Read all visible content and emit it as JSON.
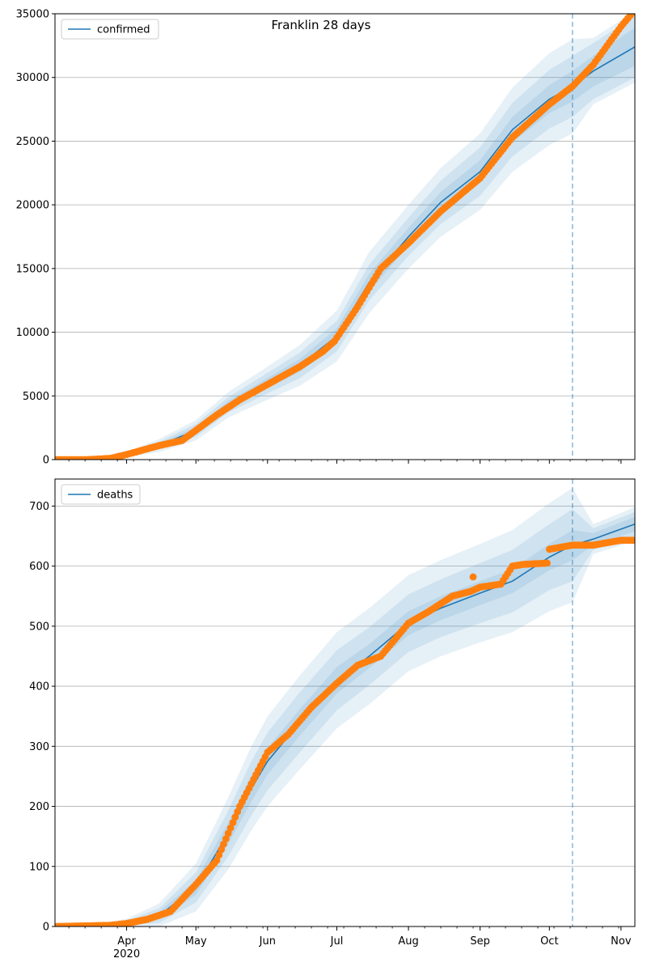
{
  "figure": {
    "title": "Franklin 28 days"
  },
  "colors": {
    "model": "#1f77b4",
    "observed": "#ff7f0e",
    "band": "#1f77b4",
    "grid": "#b0b0b0",
    "cutoff": "#1f77b4"
  },
  "x_axis": {
    "range": [
      "2020-03-01",
      "2020-11-07"
    ],
    "ticks": [
      {
        "date": "2020-04-01",
        "label": "Apr",
        "sublabel": "2020"
      },
      {
        "date": "2020-05-01",
        "label": "May",
        "sublabel": ""
      },
      {
        "date": "2020-06-01",
        "label": "Jun",
        "sublabel": ""
      },
      {
        "date": "2020-07-01",
        "label": "Jul",
        "sublabel": ""
      },
      {
        "date": "2020-08-01",
        "label": "Aug",
        "sublabel": ""
      },
      {
        "date": "2020-09-01",
        "label": "Sep",
        "sublabel": ""
      },
      {
        "date": "2020-10-01",
        "label": "Oct",
        "sublabel": ""
      },
      {
        "date": "2020-11-01",
        "label": "Nov",
        "sublabel": ""
      }
    ],
    "forecast_start": "2020-10-11"
  },
  "chart_data": [
    {
      "type": "line",
      "title": "Franklin 28 days",
      "legend": {
        "entries": [
          "confirmed"
        ],
        "placement": "top-left"
      },
      "grid": "horizontal",
      "ylim": [
        0,
        35000
      ],
      "yticks": [
        "0",
        "5000",
        "10000",
        "15000",
        "20000",
        "25000",
        "30000",
        "35000"
      ],
      "model": {
        "name": "confirmed",
        "x": [
          "2020-03-01",
          "2020-03-15",
          "2020-04-01",
          "2020-04-15",
          "2020-05-01",
          "2020-05-15",
          "2020-06-01",
          "2020-06-15",
          "2020-07-01",
          "2020-07-15",
          "2020-08-01",
          "2020-08-15",
          "2020-09-01",
          "2020-09-15",
          "2020-10-01",
          "2020-10-11",
          "2020-10-20",
          "2020-11-07"
        ],
        "y": [
          0,
          50,
          400,
          1100,
          2300,
          4300,
          6000,
          7400,
          9700,
          13900,
          17500,
          20200,
          22600,
          25900,
          28300,
          29300,
          30500,
          32400
        ],
        "band_widths": [
          [
            0,
            10,
            60,
            150,
            250,
            300,
            400,
            500,
            600,
            700,
            700,
            800,
            900,
            1000,
            1100,
            1200,
            1200,
            1500
          ],
          [
            0,
            20,
            120,
            300,
            500,
            600,
            800,
            1000,
            1200,
            1400,
            1500,
            1700,
            1900,
            2100,
            2300,
            2400,
            2200,
            2400
          ],
          [
            0,
            35,
            200,
            500,
            800,
            1000,
            1300,
            1600,
            2000,
            2400,
            2500,
            2700,
            3000,
            3300,
            3600,
            3700,
            2600,
            2800
          ]
        ]
      },
      "observed": {
        "name": "observed",
        "x": [
          "2020-03-01",
          "2020-03-15",
          "2020-03-25",
          "2020-04-01",
          "2020-04-15",
          "2020-04-25",
          "2020-05-01",
          "2020-05-10",
          "2020-05-20",
          "2020-06-01",
          "2020-06-15",
          "2020-06-25",
          "2020-06-30",
          "2020-07-10",
          "2020-07-20",
          "2020-08-01",
          "2020-08-15",
          "2020-09-01",
          "2020-09-15",
          "2020-10-01",
          "2020-10-11",
          "2020-10-20",
          "2020-11-01",
          "2020-11-07"
        ],
        "y": [
          0,
          0,
          100,
          400,
          1100,
          1500,
          2300,
          3500,
          4700,
          5900,
          7300,
          8500,
          9300,
          12000,
          15000,
          17000,
          19500,
          22100,
          25300,
          27900,
          29300,
          31000,
          34000,
          35300
        ]
      }
    },
    {
      "type": "line",
      "title": "",
      "legend": {
        "entries": [
          "deaths"
        ],
        "placement": "top-left"
      },
      "grid": "horizontal",
      "ylim": [
        0,
        745
      ],
      "yticks": [
        "0",
        "100",
        "200",
        "300",
        "400",
        "500",
        "600",
        "700"
      ],
      "model": {
        "name": "deaths",
        "x": [
          "2020-03-01",
          "2020-03-20",
          "2020-04-01",
          "2020-04-15",
          "2020-05-01",
          "2020-05-15",
          "2020-05-25",
          "2020-06-01",
          "2020-06-15",
          "2020-07-01",
          "2020-07-15",
          "2020-08-01",
          "2020-08-15",
          "2020-09-01",
          "2020-09-15",
          "2020-10-01",
          "2020-10-11",
          "2020-10-20",
          "2020-11-07"
        ],
        "y": [
          0,
          2,
          6,
          18,
          65,
          155,
          230,
          275,
          340,
          410,
          450,
          505,
          530,
          555,
          575,
          615,
          635,
          645,
          670
        ],
        "band_widths": [
          [
            0,
            1,
            2,
            6,
            12,
            18,
            22,
            22,
            22,
            22,
            20,
            20,
            20,
            20,
            20,
            22,
            25,
            10,
            12
          ],
          [
            0,
            2,
            4,
            12,
            25,
            38,
            45,
            48,
            50,
            50,
            48,
            48,
            48,
            50,
            52,
            55,
            60,
            18,
            20
          ],
          [
            0,
            3,
            7,
            20,
            40,
            60,
            70,
            75,
            78,
            80,
            80,
            80,
            80,
            82,
            85,
            90,
            95,
            25,
            28
          ]
        ]
      },
      "observed": {
        "name": "observed",
        "x": [
          "2020-03-01",
          "2020-03-25",
          "2020-04-01",
          "2020-04-10",
          "2020-04-20",
          "2020-05-01",
          "2020-05-10",
          "2020-05-20",
          "2020-06-01",
          "2020-06-10",
          "2020-06-20",
          "2020-07-01",
          "2020-07-10",
          "2020-07-20",
          "2020-08-01",
          "2020-08-10",
          "2020-08-20",
          "2020-08-28",
          "2020-09-01",
          "2020-09-10",
          "2020-09-15",
          "2020-09-20",
          "2020-09-30",
          "2020-10-01",
          "2020-10-11",
          "2020-10-20",
          "2020-11-01",
          "2020-11-07"
        ],
        "y": [
          0,
          2,
          5,
          12,
          25,
          70,
          110,
          200,
          290,
          320,
          365,
          405,
          435,
          450,
          505,
          525,
          550,
          558,
          565,
          570,
          600,
          603,
          605,
          628,
          635,
          635,
          643,
          643
        ]
      },
      "outliers": {
        "x": [
          "2020-08-29"
        ],
        "y": [
          582
        ]
      }
    }
  ]
}
